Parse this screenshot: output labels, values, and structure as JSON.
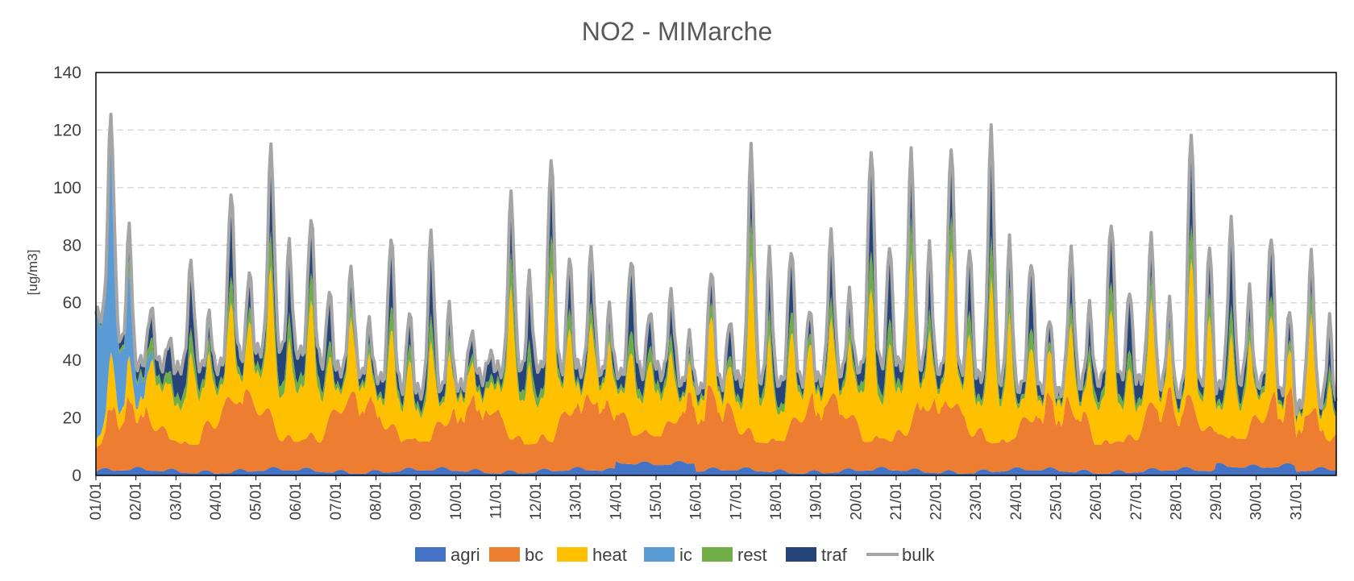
{
  "chart_data": {
    "type": "area",
    "title": "NO2 - MIMarche",
    "xlabel": "",
    "ylabel": "[ug/m3]",
    "ylim": [
      0,
      140
    ],
    "yticks": [
      "0",
      "20",
      "40",
      "60",
      "80",
      "100",
      "120",
      "140"
    ],
    "categories": [
      "01/01",
      "02/01",
      "03/01",
      "04/01",
      "05/01",
      "06/01",
      "07/01",
      "08/01",
      "09/01",
      "10/01",
      "11/01",
      "12/01",
      "13/01",
      "14/01",
      "15/01",
      "16/01",
      "17/01",
      "18/01",
      "19/01",
      "20/01",
      "21/01",
      "22/01",
      "23/01",
      "24/01",
      "25/01",
      "26/01",
      "27/01",
      "28/01",
      "29/01",
      "30/01",
      "31/01"
    ],
    "stacked": true,
    "grid": "horizontal-dashed",
    "legend_position": "bottom",
    "series": [
      {
        "name": "agri",
        "color": "#4472C4"
      },
      {
        "name": "bc",
        "color": "#ED7D31"
      },
      {
        "name": "heat",
        "color": "#FFC000"
      },
      {
        "name": "ic",
        "color": "#5B9BD5"
      },
      {
        "name": "rest",
        "color": "#70AD47"
      },
      {
        "name": "traf",
        "color": "#264478"
      },
      {
        "name": "bulk",
        "color": "#A5A5A5",
        "line": true
      }
    ],
    "bulk_daily_peak": [
      126,
      60,
      75,
      100,
      115,
      91,
      72,
      84,
      84,
      50,
      97,
      111,
      77,
      75,
      62,
      71,
      112,
      78,
      82,
      113,
      110,
      114,
      118,
      74,
      76,
      88,
      81,
      120,
      87,
      84,
      76
    ],
    "bulk_daily_trough": [
      56,
      38,
      36,
      36,
      42,
      42,
      36,
      33,
      28,
      30,
      36,
      37,
      37,
      35,
      37,
      30,
      34,
      33,
      34,
      38,
      40,
      38,
      36,
      32,
      30,
      34,
      35,
      30,
      32,
      34,
      25
    ]
  }
}
